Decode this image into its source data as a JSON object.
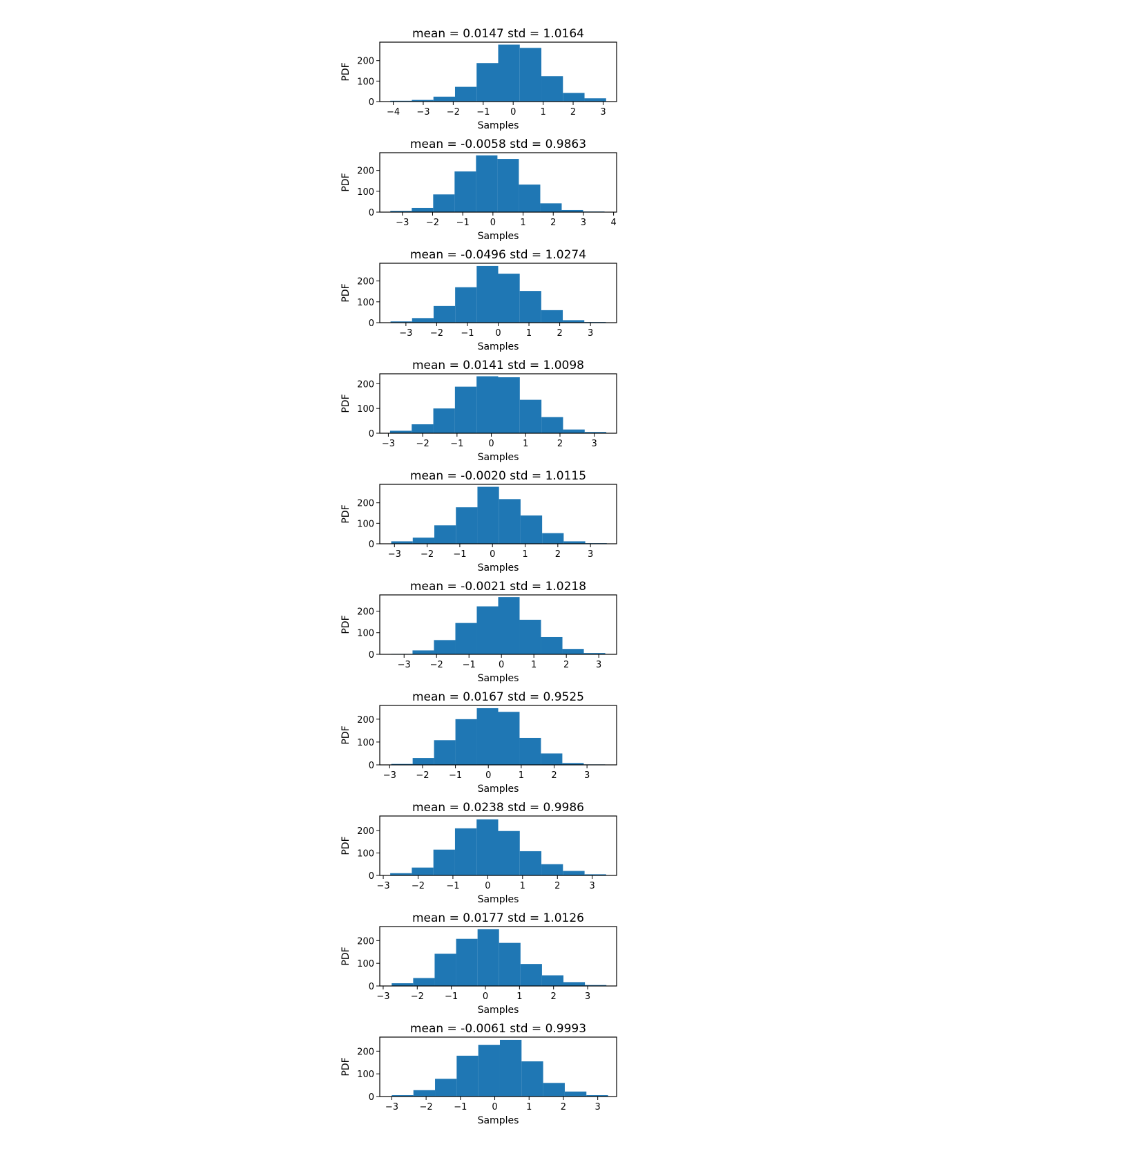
{
  "colors": {
    "bar": "#1f77b4",
    "axes": "#000000",
    "background": "#ffffff"
  },
  "chart_data": [
    {
      "type": "bar",
      "title": "mean = 0.0147 std = 1.0164",
      "xlabel": "Samples",
      "ylabel": "PDF",
      "xlim": [
        -4.45,
        3.45
      ],
      "ylim": [
        0,
        290
      ],
      "xticks": [
        -4,
        -3,
        -2,
        -1,
        0,
        1,
        2,
        3
      ],
      "xtick_labels": [
        "−4",
        "−3",
        "−2",
        "−1",
        "0",
        "1",
        "2",
        "3"
      ],
      "yticks": [
        0,
        100,
        200
      ],
      "ytick_labels": [
        "0",
        "100",
        "200"
      ],
      "bin_edges": [
        -4.1,
        -3.38,
        -2.66,
        -1.94,
        -1.22,
        -0.5,
        0.22,
        0.94,
        1.66,
        2.38,
        3.1
      ],
      "values": [
        4,
        8,
        24,
        72,
        188,
        278,
        262,
        124,
        42,
        16
      ]
    },
    {
      "type": "bar",
      "title": "mean = -0.0058 std = 0.9863",
      "xlabel": "Samples",
      "ylabel": "PDF",
      "xlim": [
        -3.75,
        4.1
      ],
      "ylim": [
        0,
        285
      ],
      "xticks": [
        -3,
        -2,
        -1,
        0,
        1,
        2,
        3,
        4
      ],
      "xtick_labels": [
        "−3",
        "−2",
        "−1",
        "0",
        "1",
        "2",
        "3",
        "4"
      ],
      "yticks": [
        0,
        100,
        200
      ],
      "ytick_labels": [
        "0",
        "100",
        "200"
      ],
      "bin_edges": [
        -3.4,
        -2.69,
        -1.98,
        -1.27,
        -0.56,
        0.15,
        0.86,
        1.57,
        2.28,
        2.99,
        3.7
      ],
      "values": [
        6,
        20,
        85,
        195,
        272,
        255,
        132,
        42,
        10,
        3
      ]
    },
    {
      "type": "bar",
      "title": "mean = -0.0496 std = 1.0274",
      "xlabel": "Samples",
      "ylabel": "PDF",
      "xlim": [
        -3.85,
        3.85
      ],
      "ylim": [
        0,
        285
      ],
      "xticks": [
        -3,
        -2,
        -1,
        0,
        1,
        2,
        3
      ],
      "xtick_labels": [
        "−3",
        "−2",
        "−1",
        "0",
        "1",
        "2",
        "3"
      ],
      "yticks": [
        0,
        100,
        200
      ],
      "ytick_labels": [
        "0",
        "100",
        "200"
      ],
      "bin_edges": [
        -3.5,
        -2.8,
        -2.1,
        -1.4,
        -0.7,
        0.0,
        0.7,
        1.4,
        2.1,
        2.8,
        3.5
      ],
      "values": [
        6,
        22,
        80,
        170,
        272,
        235,
        152,
        60,
        12,
        3
      ]
    },
    {
      "type": "bar",
      "title": "mean = 0.0141 std = 1.0098",
      "xlabel": "Samples",
      "ylabel": "PDF",
      "xlim": [
        -3.25,
        3.65
      ],
      "ylim": [
        0,
        240
      ],
      "xticks": [
        -3,
        -2,
        -1,
        0,
        1,
        2,
        3
      ],
      "xtick_labels": [
        "−3",
        "−2",
        "−1",
        "0",
        "1",
        "2",
        "3"
      ],
      "yticks": [
        0,
        100,
        200
      ],
      "ytick_labels": [
        "0",
        "100",
        "200"
      ],
      "bin_edges": [
        -2.95,
        -2.32,
        -1.69,
        -1.06,
        -0.43,
        0.2,
        0.83,
        1.46,
        2.09,
        2.72,
        3.35
      ],
      "values": [
        10,
        36,
        100,
        188,
        230,
        226,
        135,
        65,
        15,
        5
      ]
    },
    {
      "type": "bar",
      "title": "mean = -0.0020 std = 1.0115",
      "xlabel": "Samples",
      "ylabel": "PDF",
      "xlim": [
        -3.45,
        3.8
      ],
      "ylim": [
        0,
        290
      ],
      "xticks": [
        -3,
        -2,
        -1,
        0,
        1,
        2,
        3
      ],
      "xtick_labels": [
        "−3",
        "−2",
        "−1",
        "0",
        "1",
        "2",
        "3"
      ],
      "yticks": [
        0,
        100,
        200
      ],
      "ytick_labels": [
        "0",
        "100",
        "200"
      ],
      "bin_edges": [
        -3.1,
        -2.44,
        -1.78,
        -1.12,
        -0.46,
        0.2,
        0.86,
        1.52,
        2.18,
        2.84,
        3.5
      ],
      "values": [
        12,
        30,
        90,
        178,
        278,
        218,
        138,
        52,
        12,
        3
      ]
    },
    {
      "type": "bar",
      "title": "mean = -0.0021 std = 1.0218",
      "xlabel": "Samples",
      "ylabel": "PDF",
      "xlim": [
        -3.75,
        3.55
      ],
      "ylim": [
        0,
        275
      ],
      "xticks": [
        -3,
        -2,
        -1,
        0,
        1,
        2,
        3
      ],
      "xtick_labels": [
        "−3",
        "−2",
        "−1",
        "0",
        "1",
        "2",
        "3"
      ],
      "yticks": [
        0,
        100,
        200
      ],
      "ytick_labels": [
        "0",
        "100",
        "200"
      ],
      "bin_edges": [
        -3.4,
        -2.74,
        -2.08,
        -1.42,
        -0.76,
        -0.1,
        0.56,
        1.22,
        1.88,
        2.54,
        3.2
      ],
      "values": [
        2,
        18,
        66,
        145,
        222,
        265,
        160,
        80,
        25,
        6
      ]
    },
    {
      "type": "bar",
      "title": "mean = 0.0167 std = 0.9525",
      "xlabel": "Samples",
      "ylabel": "PDF",
      "xlim": [
        -3.3,
        3.9
      ],
      "ylim": [
        0,
        260
      ],
      "xticks": [
        -3,
        -2,
        -1,
        0,
        1,
        2,
        3
      ],
      "xtick_labels": [
        "−3",
        "−2",
        "−1",
        "0",
        "1",
        "2",
        "3"
      ],
      "yticks": [
        0,
        100,
        200
      ],
      "ytick_labels": [
        "0",
        "100",
        "200"
      ],
      "bin_edges": [
        -2.95,
        -2.3,
        -1.65,
        -1.0,
        -0.35,
        0.3,
        0.95,
        1.6,
        2.25,
        2.9,
        3.55
      ],
      "values": [
        4,
        30,
        108,
        200,
        248,
        232,
        118,
        50,
        8,
        2
      ]
    },
    {
      "type": "bar",
      "title": "mean = 0.0238 std = 0.9986",
      "xlabel": "Samples",
      "ylabel": "PDF",
      "xlim": [
        -3.1,
        3.7
      ],
      "ylim": [
        0,
        265
      ],
      "xticks": [
        -3,
        -2,
        -1,
        0,
        1,
        2,
        3
      ],
      "xtick_labels": [
        "−3",
        "−2",
        "−1",
        "0",
        "1",
        "2",
        "3"
      ],
      "yticks": [
        0,
        100,
        200
      ],
      "ytick_labels": [
        "0",
        "100",
        "200"
      ],
      "bin_edges": [
        -2.8,
        -2.18,
        -1.56,
        -0.94,
        -0.32,
        0.3,
        0.92,
        1.54,
        2.16,
        2.78,
        3.4
      ],
      "values": [
        10,
        35,
        115,
        210,
        250,
        198,
        108,
        50,
        20,
        5
      ]
    },
    {
      "type": "bar",
      "title": "mean = 0.0177 std = 1.0126",
      "xlabel": "Samples",
      "ylabel": "PDF",
      "xlim": [
        -3.1,
        3.85
      ],
      "ylim": [
        0,
        262
      ],
      "xticks": [
        -3,
        -2,
        -1,
        0,
        1,
        2,
        3
      ],
      "xtick_labels": [
        "−3",
        "−2",
        "−1",
        "0",
        "1",
        "2",
        "3"
      ],
      "yticks": [
        0,
        100,
        200
      ],
      "ytick_labels": [
        "0",
        "100",
        "200"
      ],
      "bin_edges": [
        -2.75,
        -2.12,
        -1.49,
        -0.86,
        -0.23,
        0.4,
        1.03,
        1.66,
        2.29,
        2.92,
        3.55
      ],
      "values": [
        12,
        35,
        142,
        208,
        250,
        190,
        97,
        47,
        17,
        4
      ]
    },
    {
      "type": "bar",
      "title": "mean = -0.0061 std = 0.9993",
      "xlabel": "Samples",
      "ylabel": "PDF",
      "xlim": [
        -3.35,
        3.55
      ],
      "ylim": [
        0,
        262
      ],
      "xticks": [
        -3,
        -2,
        -1,
        0,
        1,
        2,
        3
      ],
      "xtick_labels": [
        "−3",
        "−2",
        "−1",
        "0",
        "1",
        "2",
        "3"
      ],
      "yticks": [
        0,
        100,
        200
      ],
      "ytick_labels": [
        "0",
        "100",
        "200"
      ],
      "bin_edges": [
        -3.0,
        -2.37,
        -1.74,
        -1.11,
        -0.48,
        0.15,
        0.78,
        1.41,
        2.04,
        2.67,
        3.3
      ],
      "values": [
        6,
        28,
        78,
        180,
        228,
        250,
        155,
        60,
        22,
        6
      ]
    }
  ]
}
